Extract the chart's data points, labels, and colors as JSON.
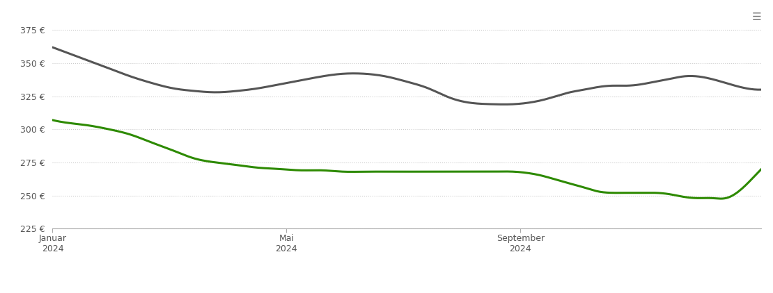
{
  "background_color": "#ffffff",
  "plot_bg_color": "#ffffff",
  "grid_color": "#cccccc",
  "ylim": [
    225,
    390
  ],
  "yticks": [
    225,
    250,
    275,
    300,
    325,
    350,
    375
  ],
  "xtick_labels": [
    "Januar\n2024",
    "Mai\n2024",
    "September\n2024"
  ],
  "lose_ware_color": "#2d8a00",
  "sackware_color": "#555555",
  "line_width": 2.2,
  "lose_ware_x": [
    0,
    2,
    5,
    8,
    11,
    14,
    17,
    20,
    23,
    26,
    29,
    32,
    35,
    38,
    41,
    44,
    47,
    50,
    53,
    56,
    59,
    62,
    65,
    67,
    69,
    71,
    73,
    75,
    77,
    79,
    81,
    83,
    85,
    87,
    89,
    91,
    93,
    95,
    97,
    100
  ],
  "lose_ware_y": [
    307,
    305,
    303,
    300,
    296,
    290,
    284,
    278,
    275,
    273,
    271,
    270,
    269,
    269,
    268,
    268,
    268,
    268,
    268,
    268,
    268,
    268,
    268,
    267,
    265,
    262,
    259,
    256,
    253,
    252,
    252,
    252,
    252,
    251,
    249,
    248,
    248,
    248,
    254,
    270
  ],
  "sackware_x": [
    0,
    2,
    5,
    8,
    11,
    14,
    17,
    20,
    23,
    26,
    29,
    32,
    35,
    38,
    41,
    44,
    47,
    50,
    53,
    56,
    59,
    62,
    65,
    67,
    69,
    71,
    73,
    75,
    77,
    79,
    81,
    83,
    85,
    87,
    89,
    91,
    93,
    95,
    97,
    100
  ],
  "sackware_y": [
    362,
    358,
    352,
    346,
    340,
    335,
    331,
    329,
    328,
    329,
    331,
    334,
    337,
    340,
    342,
    342,
    340,
    336,
    331,
    324,
    320,
    319,
    319,
    320,
    322,
    325,
    328,
    330,
    332,
    333,
    333,
    334,
    336,
    338,
    340,
    340,
    338,
    335,
    332,
    330
  ]
}
